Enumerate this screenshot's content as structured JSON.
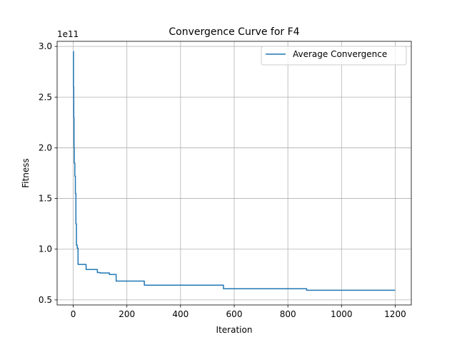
{
  "chart_data": {
    "type": "line",
    "title": "Convergence Curve for F4",
    "xlabel": "Iteration",
    "ylabel": "Fitness",
    "y_offset_text": "1e11",
    "xlim": [
      -60,
      1260
    ],
    "ylim": [
      0.45,
      3.05
    ],
    "x_ticks": [
      0,
      200,
      400,
      600,
      800,
      1000,
      1200
    ],
    "y_ticks": [
      0.5,
      1.0,
      1.5,
      2.0,
      2.5,
      3.0
    ],
    "x_tick_labels": [
      "0",
      "200",
      "400",
      "600",
      "800",
      "1000",
      "1200"
    ],
    "y_tick_labels": [
      "0.5",
      "1.0",
      "1.5",
      "2.0",
      "2.5",
      "3.0"
    ],
    "grid": true,
    "legend_position": "upper right",
    "color": "#1f77b4",
    "series": [
      {
        "name": "Average Convergence",
        "step": true,
        "points": [
          [
            0,
            2.95
          ],
          [
            1,
            2.6
          ],
          [
            2,
            2.3
          ],
          [
            3,
            2.0
          ],
          [
            4,
            1.85
          ],
          [
            6,
            1.72
          ],
          [
            8,
            1.55
          ],
          [
            10,
            1.25
          ],
          [
            12,
            1.04
          ],
          [
            15,
            1.01
          ],
          [
            18,
            0.85
          ],
          [
            48,
            0.8
          ],
          [
            90,
            0.77
          ],
          [
            100,
            0.765
          ],
          [
            135,
            0.75
          ],
          [
            160,
            0.685
          ],
          [
            265,
            0.645
          ],
          [
            560,
            0.61
          ],
          [
            870,
            0.595
          ],
          [
            1200,
            0.595
          ]
        ]
      }
    ]
  }
}
